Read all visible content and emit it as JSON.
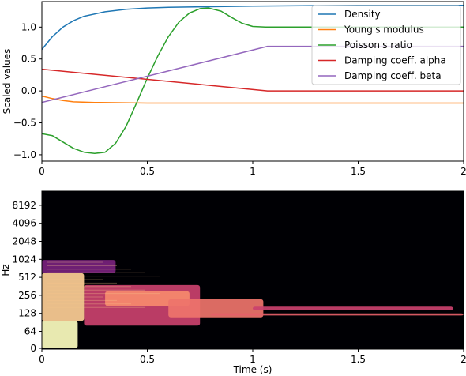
{
  "chart_data": [
    {
      "type": "line",
      "ylabel": "Scaled values",
      "xlim": [
        0,
        2
      ],
      "ylim": [
        -1.1,
        1.4
      ],
      "xticks": [
        "0",
        "0.5",
        "1",
        "1.5",
        "2"
      ],
      "yticks": [
        "−1.0",
        "−0.5",
        "0.0",
        "0.5",
        "1.0"
      ],
      "xtick_values": [
        0,
        0.5,
        1,
        1.5,
        2
      ],
      "ytick_values": [
        -1.0,
        -0.5,
        0.0,
        0.5,
        1.0
      ],
      "grid": false,
      "legend_position": "top-right",
      "series": [
        {
          "name": "Density",
          "color": "#1f77b4",
          "points": [
            [
              0,
              0.65
            ],
            [
              0.05,
              0.85
            ],
            [
              0.1,
              1.0
            ],
            [
              0.15,
              1.1
            ],
            [
              0.2,
              1.17
            ],
            [
              0.3,
              1.24
            ],
            [
              0.4,
              1.28
            ],
            [
              0.5,
              1.3
            ],
            [
              0.6,
              1.31
            ],
            [
              0.8,
              1.32
            ],
            [
              1.0,
              1.33
            ],
            [
              1.5,
              1.34
            ],
            [
              2.0,
              1.34
            ]
          ]
        },
        {
          "name": "Young's modulus",
          "color": "#ff7f0e",
          "points": [
            [
              0,
              -0.08
            ],
            [
              0.05,
              -0.12
            ],
            [
              0.1,
              -0.15
            ],
            [
              0.15,
              -0.17
            ],
            [
              0.25,
              -0.18
            ],
            [
              0.5,
              -0.19
            ],
            [
              1.0,
              -0.19
            ],
            [
              1.5,
              -0.19
            ],
            [
              2.0,
              -0.19
            ]
          ]
        },
        {
          "name": "Poisson's ratio",
          "color": "#2ca02c",
          "points": [
            [
              0,
              -0.67
            ],
            [
              0.05,
              -0.7
            ],
            [
              0.1,
              -0.8
            ],
            [
              0.15,
              -0.9
            ],
            [
              0.2,
              -0.96
            ],
            [
              0.25,
              -0.98
            ],
            [
              0.3,
              -0.96
            ],
            [
              0.35,
              -0.82
            ],
            [
              0.4,
              -0.55
            ],
            [
              0.45,
              -0.18
            ],
            [
              0.5,
              0.2
            ],
            [
              0.55,
              0.55
            ],
            [
              0.6,
              0.85
            ],
            [
              0.65,
              1.08
            ],
            [
              0.7,
              1.22
            ],
            [
              0.75,
              1.29
            ],
            [
              0.79,
              1.3
            ],
            [
              0.85,
              1.25
            ],
            [
              0.9,
              1.15
            ],
            [
              0.95,
              1.06
            ],
            [
              1.0,
              1.01
            ],
            [
              1.06,
              1.0
            ],
            [
              1.5,
              1.0
            ],
            [
              2.0,
              1.0
            ]
          ]
        },
        {
          "name": "Damping coeff. alpha",
          "color": "#d62728",
          "points": [
            [
              0,
              0.34
            ],
            [
              1.07,
              0.0
            ],
            [
              2.0,
              0.0
            ]
          ]
        },
        {
          "name": "Damping coeff. beta",
          "color": "#9467bd",
          "points": [
            [
              0,
              -0.18
            ],
            [
              1.07,
              0.7
            ],
            [
              2.0,
              0.7
            ]
          ]
        }
      ]
    },
    {
      "type": "heatmap",
      "xlabel": "Time (s)",
      "ylabel": "Hz",
      "xlim": [
        0,
        2
      ],
      "xticks": [
        "0",
        "0.5",
        "1",
        "1.5",
        "2"
      ],
      "xtick_values": [
        0,
        0.5,
        1,
        1.5,
        2
      ],
      "yticks": [
        "0",
        "64",
        "128",
        "256",
        "512",
        "1024",
        "2048",
        "4096",
        "8192"
      ],
      "yscale": "log2",
      "colormap": "magma",
      "background": "#000004",
      "bands": [
        {
          "t0": 0.0,
          "t1": 0.17,
          "f_low": 0,
          "f_high": 96,
          "level": 1.0
        },
        {
          "t0": 0.0,
          "t1": 0.2,
          "f_low": 96,
          "f_high": 600,
          "level": 0.9
        },
        {
          "t0": 0.0,
          "t1": 0.35,
          "f_low": 600,
          "f_high": 1000,
          "level": 0.35
        },
        {
          "t0": 0.2,
          "t1": 0.75,
          "f_low": 80,
          "f_high": 380,
          "level": 0.55
        },
        {
          "t0": 0.3,
          "t1": 0.7,
          "f_low": 170,
          "f_high": 300,
          "level": 0.75
        },
        {
          "t0": 0.6,
          "t1": 1.05,
          "f_low": 110,
          "f_high": 220,
          "level": 0.7
        },
        {
          "t0": 1.0,
          "t1": 1.95,
          "f_low": 145,
          "f_high": 165,
          "level": 0.55
        },
        {
          "t0": 0.8,
          "t1": 2.0,
          "f_low": 118,
          "f_high": 128,
          "level": 0.65
        }
      ]
    }
  ]
}
